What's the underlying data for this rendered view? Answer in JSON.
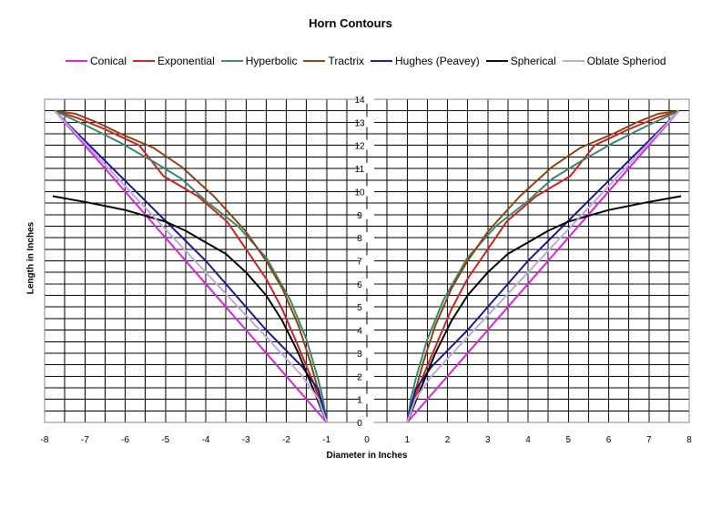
{
  "chart_data": {
    "type": "line",
    "title": "Horn Contours",
    "xlabel": "Diameter in Inches",
    "ylabel": "Length in Inches",
    "xlim": [
      -8,
      8
    ],
    "ylim": [
      0,
      14
    ],
    "x_ticks": [
      -8,
      -7,
      -6,
      -5,
      -4,
      -3,
      -2,
      -1,
      0,
      1,
      2,
      3,
      4,
      5,
      6,
      7,
      8
    ],
    "y_ticks": [
      0,
      1,
      2,
      3,
      4,
      5,
      6,
      7,
      8,
      9,
      10,
      11,
      12,
      13,
      14
    ],
    "grid": {
      "x_step": 0.5,
      "y_step": 0.5
    },
    "legend_position": "top",
    "mirrored_about_x0": true,
    "series": [
      {
        "name": "Conical",
        "color": "#dd22dd",
        "points": [
          [
            1,
            0
          ],
          [
            7.75,
            13.5
          ]
        ]
      },
      {
        "name": "Exponential",
        "color": "#cc2222",
        "points": [
          [
            1,
            0
          ],
          [
            1.3,
            1.6
          ],
          [
            1.74,
            3.44
          ],
          [
            2.1,
            4.9
          ],
          [
            2.49,
            6.2
          ],
          [
            3,
            7.5
          ],
          [
            3.47,
            8.7
          ],
          [
            4.2,
            9.8
          ],
          [
            5.05,
            10.67
          ],
          [
            5.65,
            12.0
          ],
          [
            6.5,
            12.7
          ],
          [
            7.2,
            13.2
          ],
          [
            7.75,
            13.5
          ]
        ]
      },
      {
        "name": "Hyperbolic",
        "color": "#3a8a6a",
        "points": [
          [
            1,
            0
          ],
          [
            1.1,
            1.1
          ],
          [
            1.21,
            1.87
          ],
          [
            1.5,
            3.6
          ],
          [
            1.9,
            5.3
          ],
          [
            2.49,
            7.12
          ],
          [
            3.2,
            8.5
          ],
          [
            4,
            9.6
          ],
          [
            4.6,
            10.55
          ],
          [
            5.3,
            11.3
          ],
          [
            6.1,
            12.1
          ],
          [
            6.9,
            12.8
          ],
          [
            7.75,
            13.5
          ]
        ]
      },
      {
        "name": "Tractrix",
        "color": "#8b4513",
        "points": [
          [
            1,
            0
          ],
          [
            1.15,
            1.0
          ],
          [
            1.4,
            2.6
          ],
          [
            1.7,
            4.2
          ],
          [
            2.1,
            5.8
          ],
          [
            2.5,
            7.0
          ],
          [
            3.02,
            8.3
          ],
          [
            3.8,
            9.8
          ],
          [
            4.6,
            11.07
          ],
          [
            5.3,
            11.9
          ],
          [
            6.11,
            12.5
          ],
          [
            6.7,
            13.0
          ],
          [
            7.23,
            13.37
          ],
          [
            7.75,
            13.5
          ]
        ]
      },
      {
        "name": "Hughes (Peavey)",
        "color": "#1a1a8c",
        "points": [
          [
            1,
            0
          ],
          [
            1.2,
            1.4
          ],
          [
            1.6,
            2.4
          ],
          [
            2.5,
            4.0
          ],
          [
            4,
            7.0
          ],
          [
            5.5,
            9.6
          ],
          [
            7.75,
            13.5
          ]
        ]
      },
      {
        "name": "Spherical",
        "color": "#000000",
        "points": [
          [
            1,
            0
          ],
          [
            1.3,
            1.3
          ],
          [
            1.7,
            3.0
          ],
          [
            2.1,
            4.4
          ],
          [
            2.5,
            5.5
          ],
          [
            3,
            6.5
          ],
          [
            3.5,
            7.3
          ],
          [
            4,
            7.8
          ],
          [
            4.5,
            8.3
          ],
          [
            5,
            8.7
          ],
          [
            6,
            9.2
          ],
          [
            7,
            9.55
          ],
          [
            7.8,
            9.8
          ]
        ]
      },
      {
        "name": "Oblate Spheriod",
        "color": "#c0a8e0",
        "points": [
          [
            1,
            0
          ],
          [
            1.2,
            1.0
          ],
          [
            1.6,
            2.0
          ],
          [
            2.5,
            3.7
          ],
          [
            4,
            6.5
          ],
          [
            5.5,
            9.3
          ],
          [
            7.75,
            13.5
          ]
        ]
      }
    ]
  },
  "chart": {
    "title": "Horn Contours",
    "xlabel": "Diameter in Inches",
    "ylabel": "Length in Inches"
  },
  "legend": [
    {
      "label": "Conical",
      "color": "#dd22dd"
    },
    {
      "label": "Exponential",
      "color": "#cc2222"
    },
    {
      "label": "Hyperbolic",
      "color": "#3a8a6a"
    },
    {
      "label": "Tractrix",
      "color": "#8b4513"
    },
    {
      "label": "Hughes (Peavey)",
      "color": "#1a1a8c"
    },
    {
      "label": "Spherical",
      "color": "#000000"
    },
    {
      "label": "Oblate Spheriod",
      "color": "#c0a8e0"
    }
  ]
}
